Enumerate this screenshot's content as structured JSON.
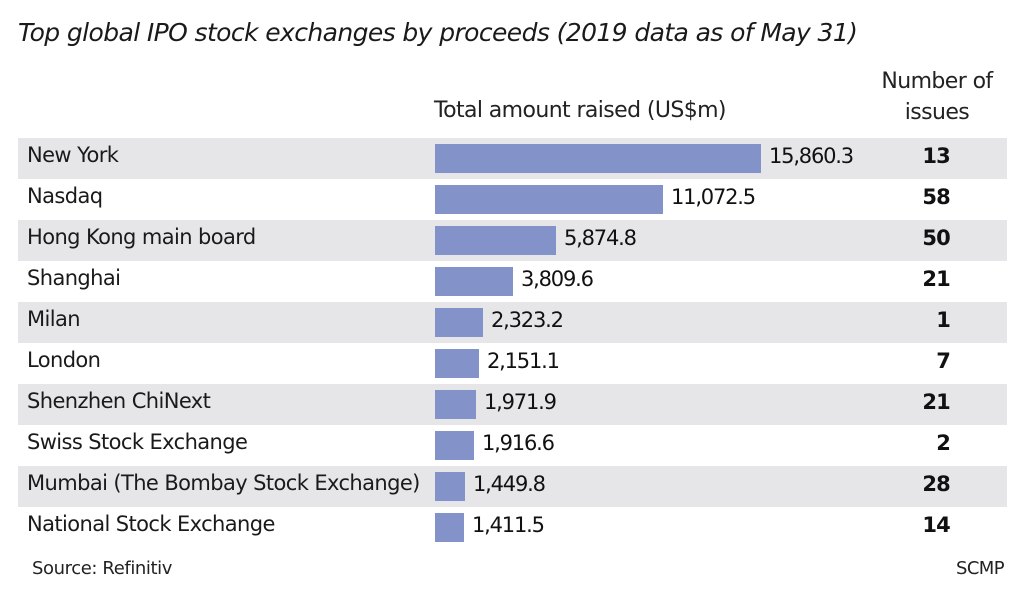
{
  "chart_data": {
    "type": "bar",
    "orientation": "horizontal",
    "title": "Top global IPO stock exchanges by proceeds (2019 data as of May 31)",
    "xlabel": "Total amount raised (US$m)",
    "ylabel": "",
    "secondary_column_label": "Number of issues",
    "categories": [
      "New York",
      "Nasdaq",
      "Hong Kong main board",
      "Shanghai",
      "Milan",
      "London",
      "Shenzhen ChiNext",
      "Swiss Stock Exchange",
      "Mumbai (The Bombay Stock Exchange)",
      "National Stock Exchange"
    ],
    "series": [
      {
        "name": "Total amount raised (US$m)",
        "values": [
          15860.3,
          11072.5,
          5874.8,
          3809.6,
          2323.2,
          2151.1,
          1971.9,
          1916.6,
          1449.8,
          1411.5
        ],
        "labels": [
          "15,860.3",
          "11,072.5",
          "5,874.8",
          "3,809.6",
          "2,323.2",
          "2,151.1",
          "1,971.9",
          "1,916.6",
          "1,449.8",
          "1,411.5"
        ],
        "color": "#8392c9"
      },
      {
        "name": "Number of issues",
        "values": [
          13,
          58,
          50,
          21,
          1,
          7,
          21,
          2,
          28,
          14
        ]
      }
    ],
    "xlim": [
      0,
      15860.3
    ],
    "grid": false,
    "legend": "none",
    "row_stripe_color": "#e6e6e8",
    "source": "Source: Refinitiv",
    "credit": "SCMP"
  },
  "header": {
    "title": "Top global IPO stock exchanges by proceeds (2019 data as of May 31)",
    "amount_column": "Total amount raised (US$m)",
    "issues_column_line1": "Number of",
    "issues_column_line2": "issues"
  },
  "footer": {
    "source": "Source: Refinitiv",
    "credit": "SCMP"
  }
}
